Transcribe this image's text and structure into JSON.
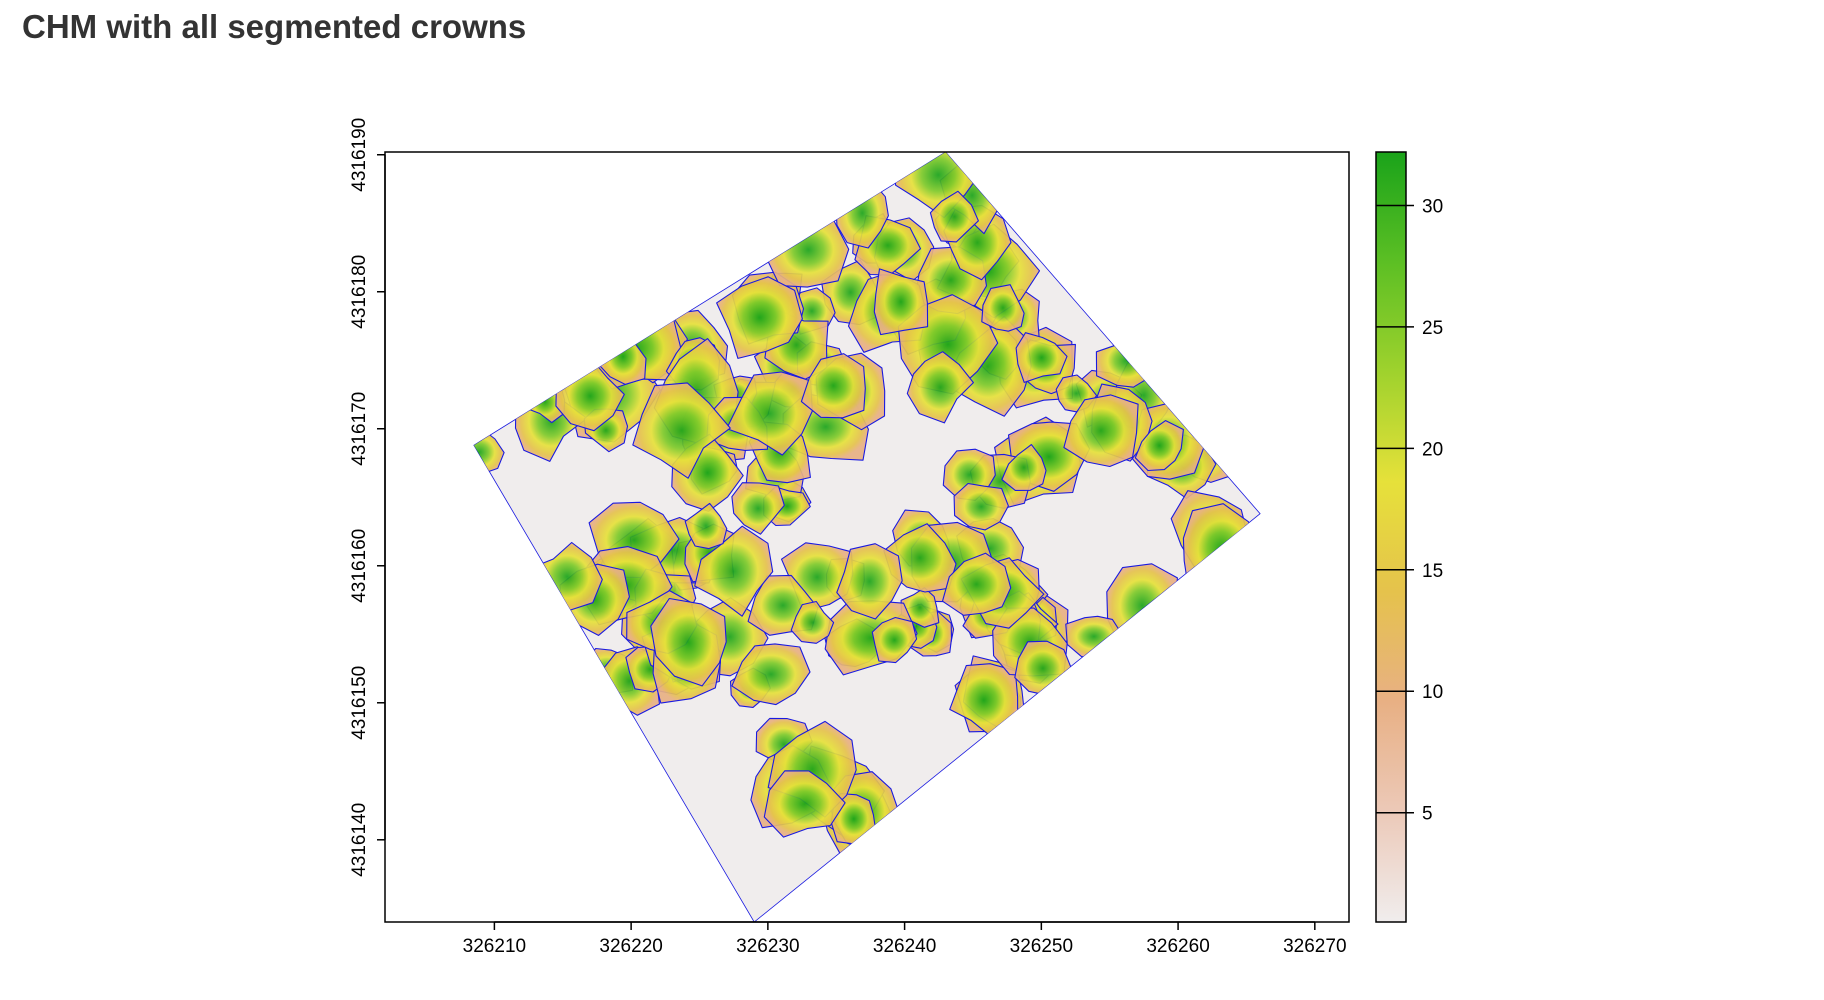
{
  "title": "CHM with all segmented crowns",
  "colors": {
    "raster_low": "#f0eded",
    "raster_mid": "#e8b084",
    "raster_yellow": "#e6e13a",
    "raster_high": "#1aa31a",
    "crown_outline": "#1a1ae0",
    "frame": "#000000"
  },
  "chart_data": {
    "type": "heatmap",
    "title": "CHM with all segmented crowns",
    "xlabel": "",
    "ylabel": "",
    "xlim": [
      326202,
      326272.5
    ],
    "ylim": [
      4316134,
      4316190.2
    ],
    "x_ticks": [
      326210,
      326220,
      326230,
      326240,
      326250,
      326260,
      326270
    ],
    "y_ticks": [
      4316140,
      4316150,
      4316160,
      4316170,
      4316180,
      4316190
    ],
    "raster_extent_corners": [
      [
        326208.5,
        4316168.8
      ],
      [
        326243,
        4316190.2
      ],
      [
        326266,
        4316163.8
      ],
      [
        326229,
        4316134
      ]
    ],
    "crown_count_approx": 150,
    "colorbar": {
      "range": [
        0.5,
        32.2
      ],
      "ticks": [
        5,
        10,
        15,
        20,
        25,
        30
      ],
      "palette": [
        "#f0eded",
        "#ecc9b8",
        "#e8b084",
        "#e5c24c",
        "#e6e13a",
        "#9fd22d",
        "#5cbf24",
        "#1aa31a"
      ]
    },
    "grid": false,
    "legend": "colorbar-right"
  }
}
